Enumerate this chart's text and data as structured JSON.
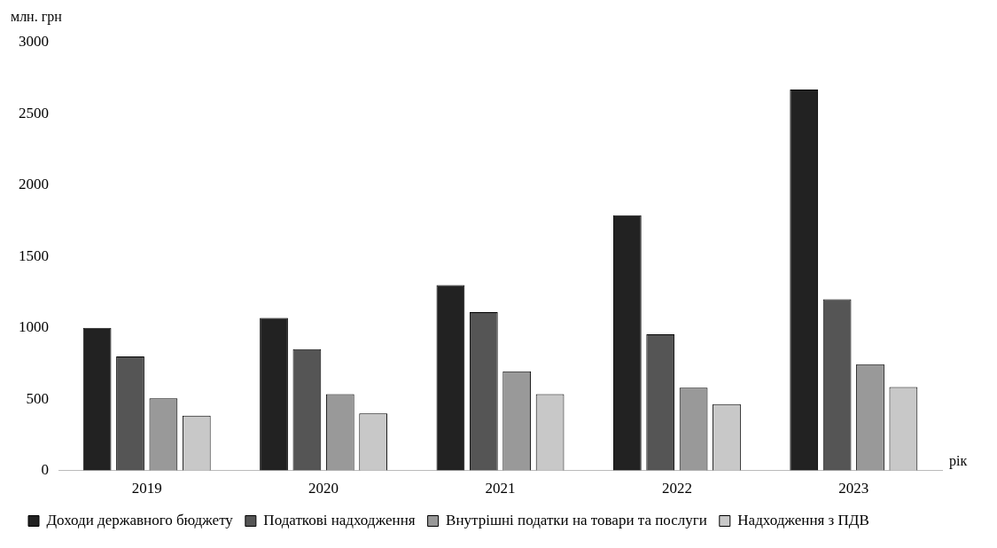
{
  "chart_data": {
    "type": "bar",
    "ylabel": "млн. грн",
    "xlabel": "рік",
    "categories": [
      "2019",
      "2020",
      "2021",
      "2022",
      "2023"
    ],
    "series": [
      {
        "name": "Доходи державного бюджету",
        "color": "#222222",
        "values": [
          1000,
          1070,
          1300,
          1790,
          2670
        ]
      },
      {
        "name": "Податкові надходження",
        "color": "#555555",
        "values": [
          800,
          850,
          1110,
          955,
          1200
        ]
      },
      {
        "name": "Внутрішні податки на товари та послуги",
        "color": "#999999",
        "values": [
          505,
          535,
          695,
          580,
          745
        ]
      },
      {
        "name": "Надходження з ПДВ",
        "color": "#c8c8c8",
        "values": [
          385,
          400,
          535,
          465,
          585
        ]
      }
    ],
    "ylim": [
      0,
      3000
    ],
    "yticks": [
      0,
      500,
      1000,
      1500,
      2000,
      2500,
      3000
    ],
    "grid": false,
    "legend": "bottom"
  }
}
